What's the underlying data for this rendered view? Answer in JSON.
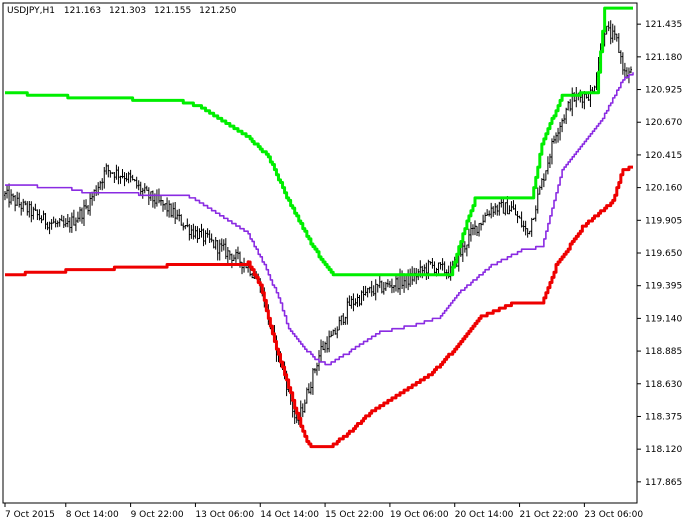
{
  "chart_data": {
    "type": "line",
    "header": {
      "symbol_tf": "USDJPY,H1",
      "open": "121.163",
      "high": "121.303",
      "low": "121.155",
      "close": "121.250"
    },
    "ylim": [
      117.7,
      121.6
    ],
    "y_ticks": [
      "121.435",
      "121.180",
      "120.925",
      "120.670",
      "120.415",
      "120.160",
      "119.905",
      "119.650",
      "119.395",
      "119.140",
      "118.885",
      "118.630",
      "118.375",
      "118.120",
      "117.865"
    ],
    "x_ticks": [
      {
        "label": "7 Oct 2015",
        "i": 0
      },
      {
        "label": "8 Oct 14:00",
        "i": 30
      },
      {
        "label": "9 Oct 22:00",
        "i": 62
      },
      {
        "label": "13 Oct 06:00",
        "i": 94
      },
      {
        "label": "14 Oct 14:00",
        "i": 126
      },
      {
        "label": "15 Oct 22:00",
        "i": 158
      },
      {
        "label": "19 Oct 06:00",
        "i": 190
      },
      {
        "label": "20 Oct 14:00",
        "i": 222
      },
      {
        "label": "21 Oct 22:00",
        "i": 254
      },
      {
        "label": "23 Oct 06:00",
        "i": 286
      }
    ],
    "colors": {
      "bars": "#000000",
      "upper": "#00ee00",
      "middle": "#8a2be2",
      "lower": "#ee0000",
      "axis": "#000000"
    },
    "series": [
      {
        "color_key": "upper",
        "knots": [
          [
            0,
            120.9
          ],
          [
            40,
            120.86
          ],
          [
            85,
            120.84
          ],
          [
            95,
            120.8
          ],
          [
            105,
            120.7
          ],
          [
            120,
            120.55
          ],
          [
            130,
            120.4
          ],
          [
            140,
            120.05
          ],
          [
            150,
            119.75
          ],
          [
            158,
            119.55
          ],
          [
            162,
            119.48
          ],
          [
            200,
            119.48
          ],
          [
            220,
            119.48
          ],
          [
            226,
            119.8
          ],
          [
            232,
            120.07
          ],
          [
            260,
            120.07
          ],
          [
            265,
            120.5
          ],
          [
            275,
            120.88
          ],
          [
            292,
            120.9
          ],
          [
            296,
            121.55
          ],
          [
            310,
            121.55
          ]
        ]
      },
      {
        "color_key": "middle",
        "knots": [
          [
            0,
            120.18
          ],
          [
            30,
            120.16
          ],
          [
            40,
            120.12
          ],
          [
            90,
            120.1
          ],
          [
            100,
            120.0
          ],
          [
            110,
            119.9
          ],
          [
            120,
            119.8
          ],
          [
            128,
            119.55
          ],
          [
            135,
            119.3
          ],
          [
            140,
            119.05
          ],
          [
            148,
            118.9
          ],
          [
            155,
            118.8
          ],
          [
            160,
            118.78
          ],
          [
            170,
            118.88
          ],
          [
            185,
            119.03
          ],
          [
            200,
            119.08
          ],
          [
            215,
            119.15
          ],
          [
            225,
            119.35
          ],
          [
            240,
            119.55
          ],
          [
            255,
            119.67
          ],
          [
            265,
            119.7
          ],
          [
            275,
            120.3
          ],
          [
            285,
            120.5
          ],
          [
            295,
            120.7
          ],
          [
            305,
            121.0
          ],
          [
            310,
            121.05
          ]
        ]
      },
      {
        "color_key": "lower",
        "knots": [
          [
            0,
            119.48
          ],
          [
            40,
            119.52
          ],
          [
            80,
            119.55
          ],
          [
            120,
            119.57
          ],
          [
            126,
            119.4
          ],
          [
            133,
            118.95
          ],
          [
            140,
            118.6
          ],
          [
            146,
            118.3
          ],
          [
            150,
            118.15
          ],
          [
            160,
            118.13
          ],
          [
            170,
            118.25
          ],
          [
            180,
            118.4
          ],
          [
            195,
            118.55
          ],
          [
            210,
            118.7
          ],
          [
            225,
            118.95
          ],
          [
            235,
            119.15
          ],
          [
            250,
            119.25
          ],
          [
            265,
            119.25
          ],
          [
            272,
            119.55
          ],
          [
            285,
            119.85
          ],
          [
            300,
            120.05
          ],
          [
            305,
            120.3
          ],
          [
            310,
            120.32
          ]
        ]
      }
    ],
    "price_path": [
      [
        0,
        120.1
      ],
      [
        10,
        120.0
      ],
      [
        20,
        119.9
      ],
      [
        30,
        119.85
      ],
      [
        40,
        120.0
      ],
      [
        50,
        120.3
      ],
      [
        60,
        120.25
      ],
      [
        70,
        120.1
      ],
      [
        80,
        120.0
      ],
      [
        90,
        119.85
      ],
      [
        100,
        119.75
      ],
      [
        110,
        119.65
      ],
      [
        120,
        119.55
      ],
      [
        126,
        119.4
      ],
      [
        132,
        119.0
      ],
      [
        138,
        118.7
      ],
      [
        144,
        118.3
      ],
      [
        150,
        118.6
      ],
      [
        156,
        118.9
      ],
      [
        162,
        119.0
      ],
      [
        170,
        119.25
      ],
      [
        180,
        119.35
      ],
      [
        190,
        119.4
      ],
      [
        200,
        119.45
      ],
      [
        210,
        119.55
      ],
      [
        220,
        119.5
      ],
      [
        230,
        119.8
      ],
      [
        240,
        120.0
      ],
      [
        250,
        120.0
      ],
      [
        258,
        119.8
      ],
      [
        265,
        120.2
      ],
      [
        272,
        120.6
      ],
      [
        280,
        120.85
      ],
      [
        290,
        120.9
      ],
      [
        296,
        121.4
      ],
      [
        302,
        121.3
      ],
      [
        306,
        121.05
      ],
      [
        310,
        121.05
      ]
    ]
  }
}
